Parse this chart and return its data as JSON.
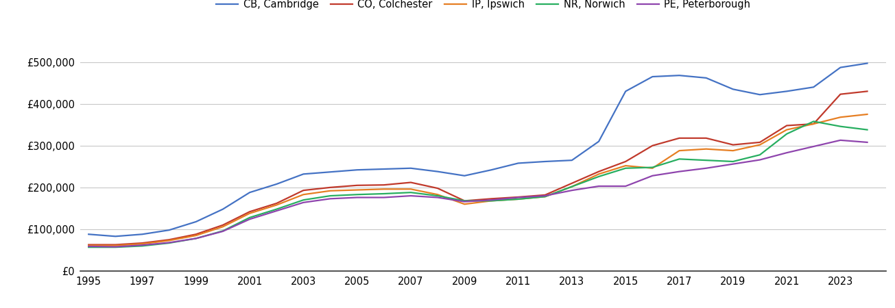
{
  "years": [
    1995,
    1996,
    1997,
    1998,
    1999,
    2000,
    2001,
    2002,
    2003,
    2004,
    2005,
    2006,
    2007,
    2008,
    2009,
    2010,
    2011,
    2012,
    2013,
    2014,
    2015,
    2016,
    2017,
    2018,
    2019,
    2020,
    2021,
    2022,
    2023,
    2024
  ],
  "CB_Cambridge": [
    88000,
    83000,
    88000,
    98000,
    118000,
    148000,
    188000,
    208000,
    232000,
    237000,
    242000,
    244000,
    246000,
    238000,
    228000,
    242000,
    258000,
    262000,
    265000,
    310000,
    430000,
    465000,
    468000,
    462000,
    435000,
    422000,
    430000,
    440000,
    487000,
    497000
  ],
  "CO_Colchester": [
    63000,
    63000,
    67000,
    75000,
    88000,
    110000,
    142000,
    162000,
    193000,
    200000,
    205000,
    206000,
    212000,
    198000,
    168000,
    173000,
    177000,
    182000,
    210000,
    238000,
    262000,
    300000,
    318000,
    318000,
    302000,
    308000,
    348000,
    352000,
    423000,
    430000
  ],
  "IP_Ipswich": [
    61000,
    61000,
    65000,
    73000,
    85000,
    106000,
    138000,
    158000,
    183000,
    192000,
    194000,
    196000,
    196000,
    183000,
    160000,
    168000,
    172000,
    178000,
    202000,
    232000,
    252000,
    246000,
    288000,
    292000,
    288000,
    302000,
    338000,
    352000,
    368000,
    375000
  ],
  "NR_Norwich": [
    57000,
    57000,
    60000,
    67000,
    78000,
    96000,
    128000,
    148000,
    170000,
    180000,
    183000,
    185000,
    188000,
    180000,
    168000,
    168000,
    172000,
    178000,
    202000,
    226000,
    246000,
    248000,
    268000,
    265000,
    262000,
    278000,
    328000,
    358000,
    346000,
    338000
  ],
  "PE_Peterborough": [
    59000,
    58000,
    62000,
    68000,
    78000,
    95000,
    124000,
    144000,
    164000,
    173000,
    176000,
    176000,
    180000,
    176000,
    166000,
    170000,
    176000,
    180000,
    193000,
    203000,
    203000,
    228000,
    238000,
    246000,
    256000,
    266000,
    283000,
    298000,
    313000,
    308000
  ],
  "series_colors": {
    "CB_Cambridge": "#4472c4",
    "CO_Colchester": "#c0392b",
    "IP_Ipswich": "#e67e22",
    "NR_Norwich": "#27ae60",
    "PE_Peterborough": "#8e44ad"
  },
  "series_labels": {
    "CB_Cambridge": "CB, Cambridge",
    "CO_Colchester": "CO, Colchester",
    "IP_Ipswich": "IP, Ipswich",
    "NR_Norwich": "NR, Norwich",
    "PE_Peterborough": "PE, Peterborough"
  },
  "ylim": [
    0,
    560000
  ],
  "yticks": [
    0,
    100000,
    200000,
    300000,
    400000,
    500000
  ],
  "xticks": [
    1995,
    1997,
    1999,
    2001,
    2003,
    2005,
    2007,
    2009,
    2011,
    2013,
    2015,
    2017,
    2019,
    2021,
    2023
  ],
  "background_color": "#ffffff",
  "grid_color": "#c8c8c8",
  "line_width": 1.6,
  "xlim_left": 1994.7,
  "xlim_right": 2024.7
}
